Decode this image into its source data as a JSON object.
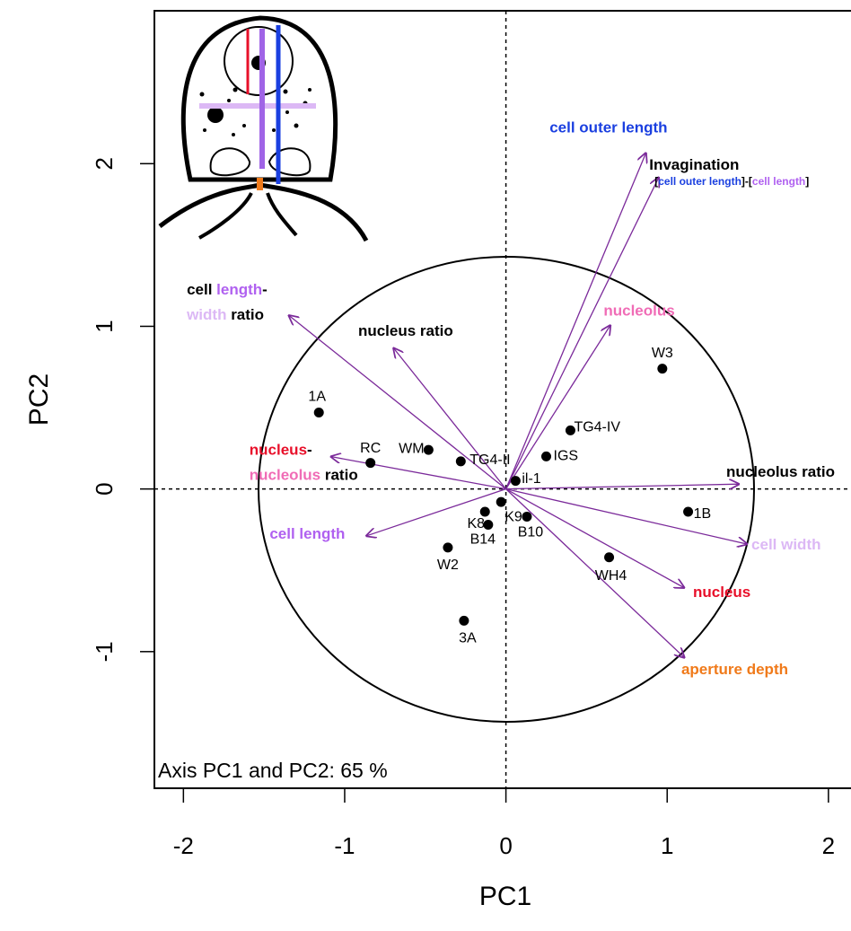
{
  "chart_data": {
    "type": "biplot",
    "xlabel": "PC1",
    "ylabel": "PC2",
    "annotation": "Axis PC1 and PC2: 65 %",
    "xlim": [
      -2.18,
      2.14
    ],
    "ylim": [
      -1.84,
      2.94
    ],
    "xticks": [
      -2,
      -1,
      0,
      1,
      2
    ],
    "yticks": [
      -1,
      0,
      1,
      2
    ],
    "points": {
      "color": "#000000",
      "labels": [
        "1A",
        "RC",
        "WM",
        "TG4-II",
        "il-1",
        "IGS",
        "TG4-IV",
        "W3",
        "K8",
        "K9",
        "B14",
        "B10",
        "W2",
        "1B",
        "WH4",
        "3A"
      ],
      "x": [
        -1.16,
        -0.84,
        -0.48,
        -0.28,
        0.06,
        0.25,
        0.4,
        0.97,
        -0.13,
        -0.03,
        -0.11,
        0.13,
        -0.36,
        1.13,
        0.64,
        -0.26
      ],
      "y": [
        0.47,
        0.16,
        0.24,
        0.17,
        0.05,
        0.2,
        0.36,
        0.74,
        -0.14,
        -0.08,
        -0.22,
        -0.17,
        -0.36,
        -0.14,
        -0.42,
        -0.81
      ]
    },
    "arrow_color": "#7b2a9a",
    "loadings": [
      {
        "x": 0.87,
        "y": 2.07,
        "label_lines": [
          [
            {
              "text": "cell outer length",
              "color": "#1a3fe0"
            }
          ]
        ]
      },
      {
        "x": 0.95,
        "y": 1.92,
        "label_lines": [
          [
            {
              "text": "Invagination",
              "color": "#000000"
            }
          ],
          [
            {
              "text": "[",
              "color": "#000000"
            },
            {
              "text": "cell outer length",
              "color": "#1a3fe0"
            },
            {
              "text": "]-[",
              "color": "#000000"
            },
            {
              "text": "cell length",
              "color": "#b061f0"
            },
            {
              "text": "]",
              "color": "#000000"
            }
          ]
        ]
      },
      {
        "x": 0.65,
        "y": 1.01,
        "label_lines": [
          [
            {
              "text": "nucleolus",
              "color": "#f06cb6"
            }
          ]
        ]
      },
      {
        "x": -1.35,
        "y": 1.07,
        "label_lines": [
          [
            {
              "text": "cell ",
              "color": "#000000"
            },
            {
              "text": "length",
              "color": "#b061f0"
            },
            {
              "text": "-",
              "color": "#000000"
            }
          ],
          [
            {
              "text": "width",
              "color": "#dcb8f5"
            },
            {
              "text": " ratio",
              "color": "#000000"
            }
          ]
        ]
      },
      {
        "x": -0.7,
        "y": 0.87,
        "label_lines": [
          [
            {
              "text": "nucleus ratio",
              "color": "#000000"
            }
          ]
        ]
      },
      {
        "x": -1.09,
        "y": 0.2,
        "label_lines": [
          [
            {
              "text": "nucleus",
              "color": "#e8102a"
            },
            {
              "text": "-",
              "color": "#000000"
            }
          ],
          [
            {
              "text": "nucleolus",
              "color": "#f06cb6"
            },
            {
              "text": " ratio",
              "color": "#000000"
            }
          ]
        ]
      },
      {
        "x": -0.87,
        "y": -0.29,
        "label_lines": [
          [
            {
              "text": "cell length",
              "color": "#b061f0"
            }
          ]
        ]
      },
      {
        "x": 1.45,
        "y": 0.03,
        "label_lines": [
          [
            {
              "text": "nucleolus ratio",
              "color": "#000000"
            }
          ]
        ]
      },
      {
        "x": 1.5,
        "y": -0.34,
        "label_lines": [
          [
            {
              "text": "cell width",
              "color": "#dcb8f5"
            }
          ]
        ]
      },
      {
        "x": 1.11,
        "y": -0.61,
        "label_lines": [
          [
            {
              "text": "nucleus",
              "color": "#e8102a"
            }
          ]
        ]
      },
      {
        "x": 1.11,
        "y": -1.04,
        "label_lines": [
          [
            {
              "text": "aperture depth",
              "color": "#f07a1a"
            }
          ]
        ]
      }
    ]
  }
}
